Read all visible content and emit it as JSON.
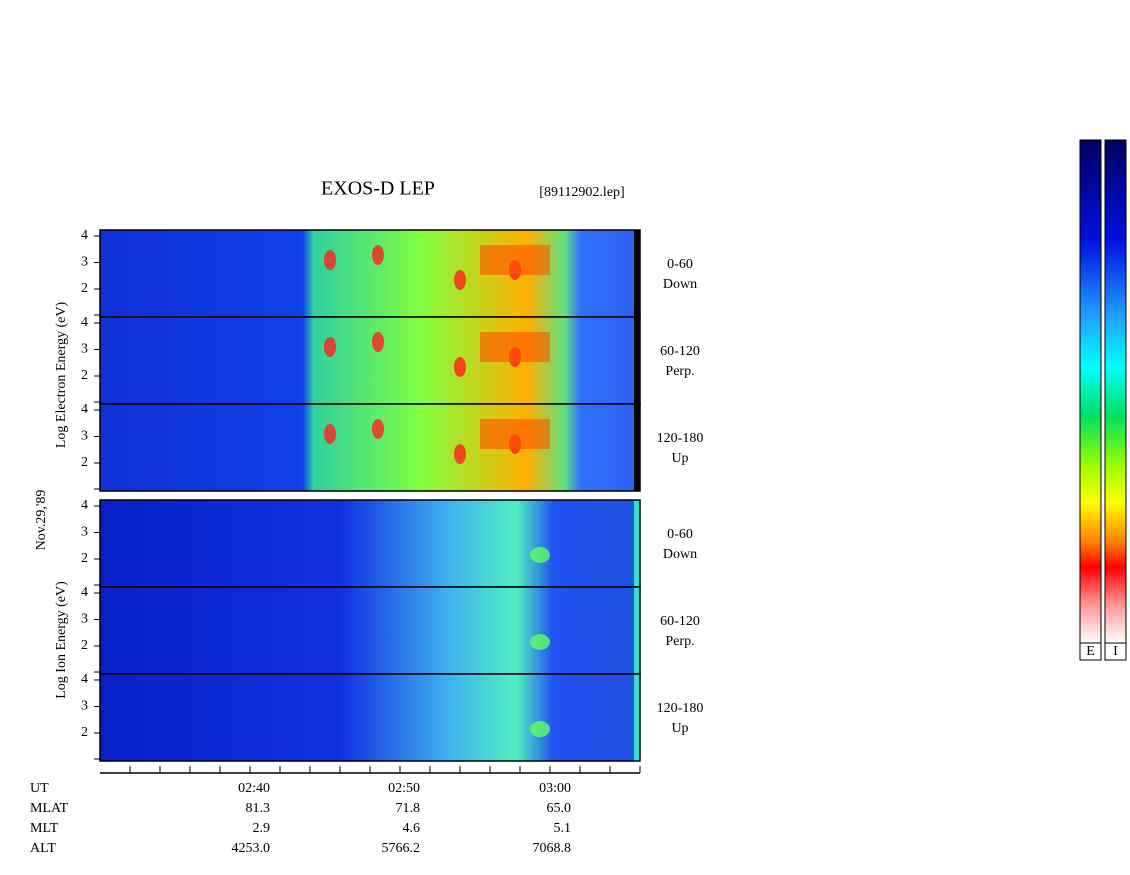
{
  "header": {
    "title": "EXOS-D LEP",
    "file": "[89112902.lep]",
    "date": "Nov.29,'89"
  },
  "electron": {
    "label": "Log Electron Energy (eV)",
    "panels": [
      {
        "angle": "0-60",
        "dir": "Down"
      },
      {
        "angle": "60-120",
        "dir": "Perp."
      },
      {
        "angle": "120-180",
        "dir": "Up"
      }
    ]
  },
  "ion": {
    "label": "Log Ion Energy (eV)",
    "panels": [
      {
        "angle": "0-60",
        "dir": "Down"
      },
      {
        "angle": "60-120",
        "dir": "Perp."
      },
      {
        "angle": "120-180",
        "dir": "Up"
      }
    ]
  },
  "yticks": [
    4,
    3,
    2
  ],
  "ephemeris": {
    "rows": [
      {
        "name": "UT",
        "values": [
          "02:40",
          "02:50",
          "03:00"
        ]
      },
      {
        "name": "MLAT",
        "values": [
          "81.3",
          "71.8",
          "65.0"
        ]
      },
      {
        "name": "MLT",
        "values": [
          "2.9",
          "4.6",
          "5.1"
        ]
      },
      {
        "name": "ALT",
        "values": [
          "4253.0",
          "5766.2",
          "7068.8"
        ]
      }
    ]
  },
  "colorbars": [
    "E",
    "I"
  ]
}
